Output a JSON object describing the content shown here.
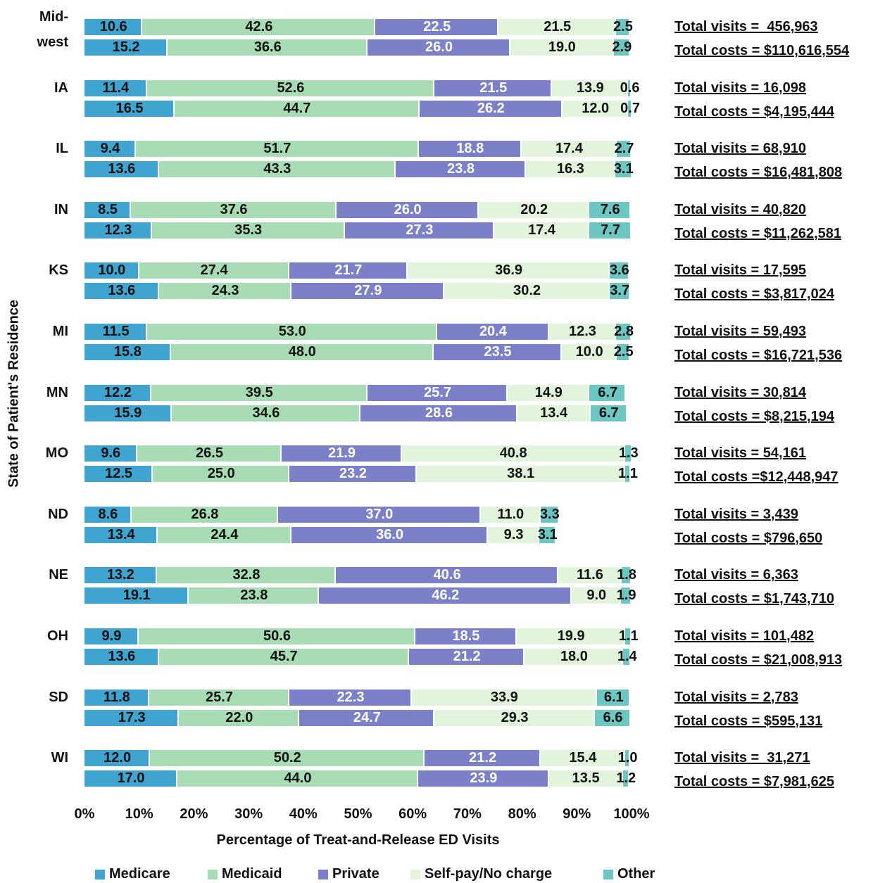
{
  "chart_data": {
    "type": "stacked-bar",
    "xlabel": "Percentage of Treat-and-Release ED Visits",
    "ylabel": "State of Patient's Residence",
    "categories": [
      "Mid-\nwest",
      "IA",
      "IL",
      "IN",
      "KS",
      "MI",
      "MN",
      "MO",
      "ND",
      "NE",
      "OH",
      "SD",
      "WI"
    ],
    "xlim": [
      0,
      100
    ],
    "xticks": [
      {
        "value": 0,
        "label": "0%"
      },
      {
        "value": 10,
        "label": "10%"
      },
      {
        "value": 20,
        "label": "20%"
      },
      {
        "value": 30,
        "label": "30%"
      },
      {
        "value": 40,
        "label": "40%"
      },
      {
        "value": 50,
        "label": "50%"
      },
      {
        "value": 60,
        "label": "60%"
      },
      {
        "value": 70,
        "label": "70%"
      },
      {
        "value": 80,
        "label": "80%"
      },
      {
        "value": 90,
        "label": "90%"
      },
      {
        "value": 100,
        "label": "100%"
      }
    ],
    "legend": "bottom",
    "series": [
      {
        "name": "Medicare",
        "color": "#3fa4cf",
        "label_color": "#111111",
        "values": [
          10.6,
          11.4,
          9.4,
          8.5,
          10.0,
          11.5,
          12.2,
          9.6,
          8.6,
          13.2,
          9.9,
          11.8,
          12.0
        ],
        "value_labels": [
          "10.6",
          "11.4",
          "9.4",
          "8.5",
          "10.0",
          "11.5",
          "12.2",
          "9.6",
          "8.6",
          "13.2",
          "9.9",
          "11.8",
          "12.0"
        ],
        "cost_values": [
          15.2,
          16.5,
          13.6,
          12.3,
          13.6,
          15.8,
          15.9,
          12.5,
          13.4,
          19.1,
          13.6,
          17.3,
          17.0
        ],
        "cost_value_labels": [
          "15.2",
          "16.5",
          "13.6",
          "12.3",
          "13.6",
          "15.8",
          "15.9",
          "12.5",
          "13.4",
          "19.1",
          "13.6",
          "17.3",
          "17.0"
        ]
      },
      {
        "name": "Medicaid",
        "color": "#a8dcb5",
        "label_color": "#111111",
        "values": [
          42.6,
          52.6,
          51.7,
          37.6,
          27.4,
          53.0,
          39.5,
          26.5,
          26.8,
          32.8,
          50.6,
          25.7,
          50.2
        ],
        "value_labels": [
          "42.6",
          "52.6",
          "51.7",
          "37.6",
          "27.4",
          "53.0",
          "39.5",
          "26.5",
          "26.8",
          "32.8",
          "50.6",
          "25.7",
          "50.2"
        ],
        "cost_values": [
          36.6,
          44.7,
          43.3,
          35.3,
          24.3,
          48.0,
          34.6,
          25.0,
          24.4,
          23.8,
          45.7,
          22.0,
          44.0
        ],
        "cost_value_labels": [
          "36.6",
          "44.7",
          "43.3",
          "35.3",
          "24.3",
          "48.0",
          "34.6",
          "25.0",
          "24.4",
          "23.8",
          "45.7",
          "22.0",
          "44.0"
        ]
      },
      {
        "name": "Private",
        "color": "#7b80c8",
        "label_color": "#ffffff",
        "values": [
          22.5,
          21.5,
          18.8,
          26.0,
          21.7,
          20.4,
          25.7,
          21.9,
          37.0,
          40.6,
          18.5,
          22.3,
          21.2
        ],
        "value_labels": [
          "22.5",
          "21.5",
          "18.8",
          "26.0",
          "21.7",
          "20.4",
          "25.7",
          "21.9",
          "37.0",
          "40.6",
          "18.5",
          "22.3",
          "21.2"
        ],
        "cost_values": [
          26.0,
          26.2,
          23.8,
          27.3,
          27.9,
          23.5,
          28.6,
          23.2,
          36.0,
          46.2,
          21.2,
          24.7,
          23.9
        ],
        "cost_value_labels": [
          "26.0",
          "26.2",
          "23.8",
          "27.3",
          "27.9",
          "23.5",
          "28.6",
          "23.2",
          "36.0",
          "46.2",
          "21.2",
          "24.7",
          "23.9"
        ]
      },
      {
        "name": "Self-pay/No charge",
        "color": "#e2f5dc",
        "label_color": "#111111",
        "values": [
          21.5,
          13.9,
          17.4,
          20.2,
          36.9,
          12.3,
          14.9,
          40.8,
          11.0,
          11.6,
          19.9,
          33.9,
          15.4
        ],
        "value_labels": [
          "21.5",
          "13.9",
          "17.4",
          "20.2",
          "36.9",
          "12.3",
          "14.9",
          "40.8",
          "11.0",
          "11.6",
          "19.9",
          "33.9",
          "15.4"
        ],
        "cost_values": [
          19.0,
          12.0,
          16.3,
          17.4,
          30.2,
          10.0,
          13.4,
          38.1,
          9.3,
          9.0,
          18.0,
          29.3,
          13.5
        ],
        "cost_value_labels": [
          "19.0",
          "12.0",
          "16.3",
          "17.4",
          "30.2",
          "10.0",
          "13.4",
          "38.1",
          "9.3",
          "9.0",
          "18.0",
          "29.3",
          "13.5"
        ]
      },
      {
        "name": "Other",
        "color": "#6cc7c2",
        "label_color": "#111111",
        "values": [
          2.5,
          0.6,
          2.7,
          7.6,
          3.6,
          2.8,
          6.7,
          1.3,
          3.3,
          1.8,
          1.1,
          6.1,
          1.0
        ],
        "value_labels": [
          "2.5",
          "0.6",
          "2.7",
          "7.6",
          "3.6",
          "2.8",
          "6.7",
          "1.3",
          "3.3",
          "1.8",
          "1.1",
          "6.1",
          "1.0"
        ],
        "cost_values": [
          2.9,
          0.7,
          3.1,
          7.7,
          3.7,
          2.5,
          6.7,
          1.1,
          3.1,
          1.9,
          1.4,
          6.6,
          1.2
        ],
        "cost_value_labels": [
          "2.9",
          "0.7",
          "3.1",
          "7.7",
          "3.7",
          "2.5",
          "6.7",
          "1.1",
          "3.1",
          "1.9",
          "1.4",
          "6.6",
          "1.2"
        ]
      }
    ],
    "visit_totals": [
      "Total visits =  456,963",
      "Total visits = 16,098",
      "Total visits = 68,910",
      "Total visits = 40,820",
      "Total visits = 17,595",
      "Total visits = 59,493",
      "Total visits = 30,814",
      "Total visits = 54,161",
      "Total visits = 3,439",
      "Total visits = 6,363",
      "Total visits = 101,482",
      "Total visits = 2,783",
      "Total visits =  31,271"
    ],
    "cost_totals": [
      "Total costs = $110,616,554",
      "Total costs = $4,195,444",
      "Total costs = $16,481,808",
      "Total costs = $11,262,581",
      "Total costs = $3,817,024",
      "Total costs = $16,721,536",
      "Total costs = $8,215,194",
      "Total costs =$12,448,947",
      "Total costs = $796,650",
      "Total costs = $1,743,710",
      "Total costs = $21,008,913",
      "Total costs = $595,131",
      "Total costs = $7,981,625"
    ]
  }
}
